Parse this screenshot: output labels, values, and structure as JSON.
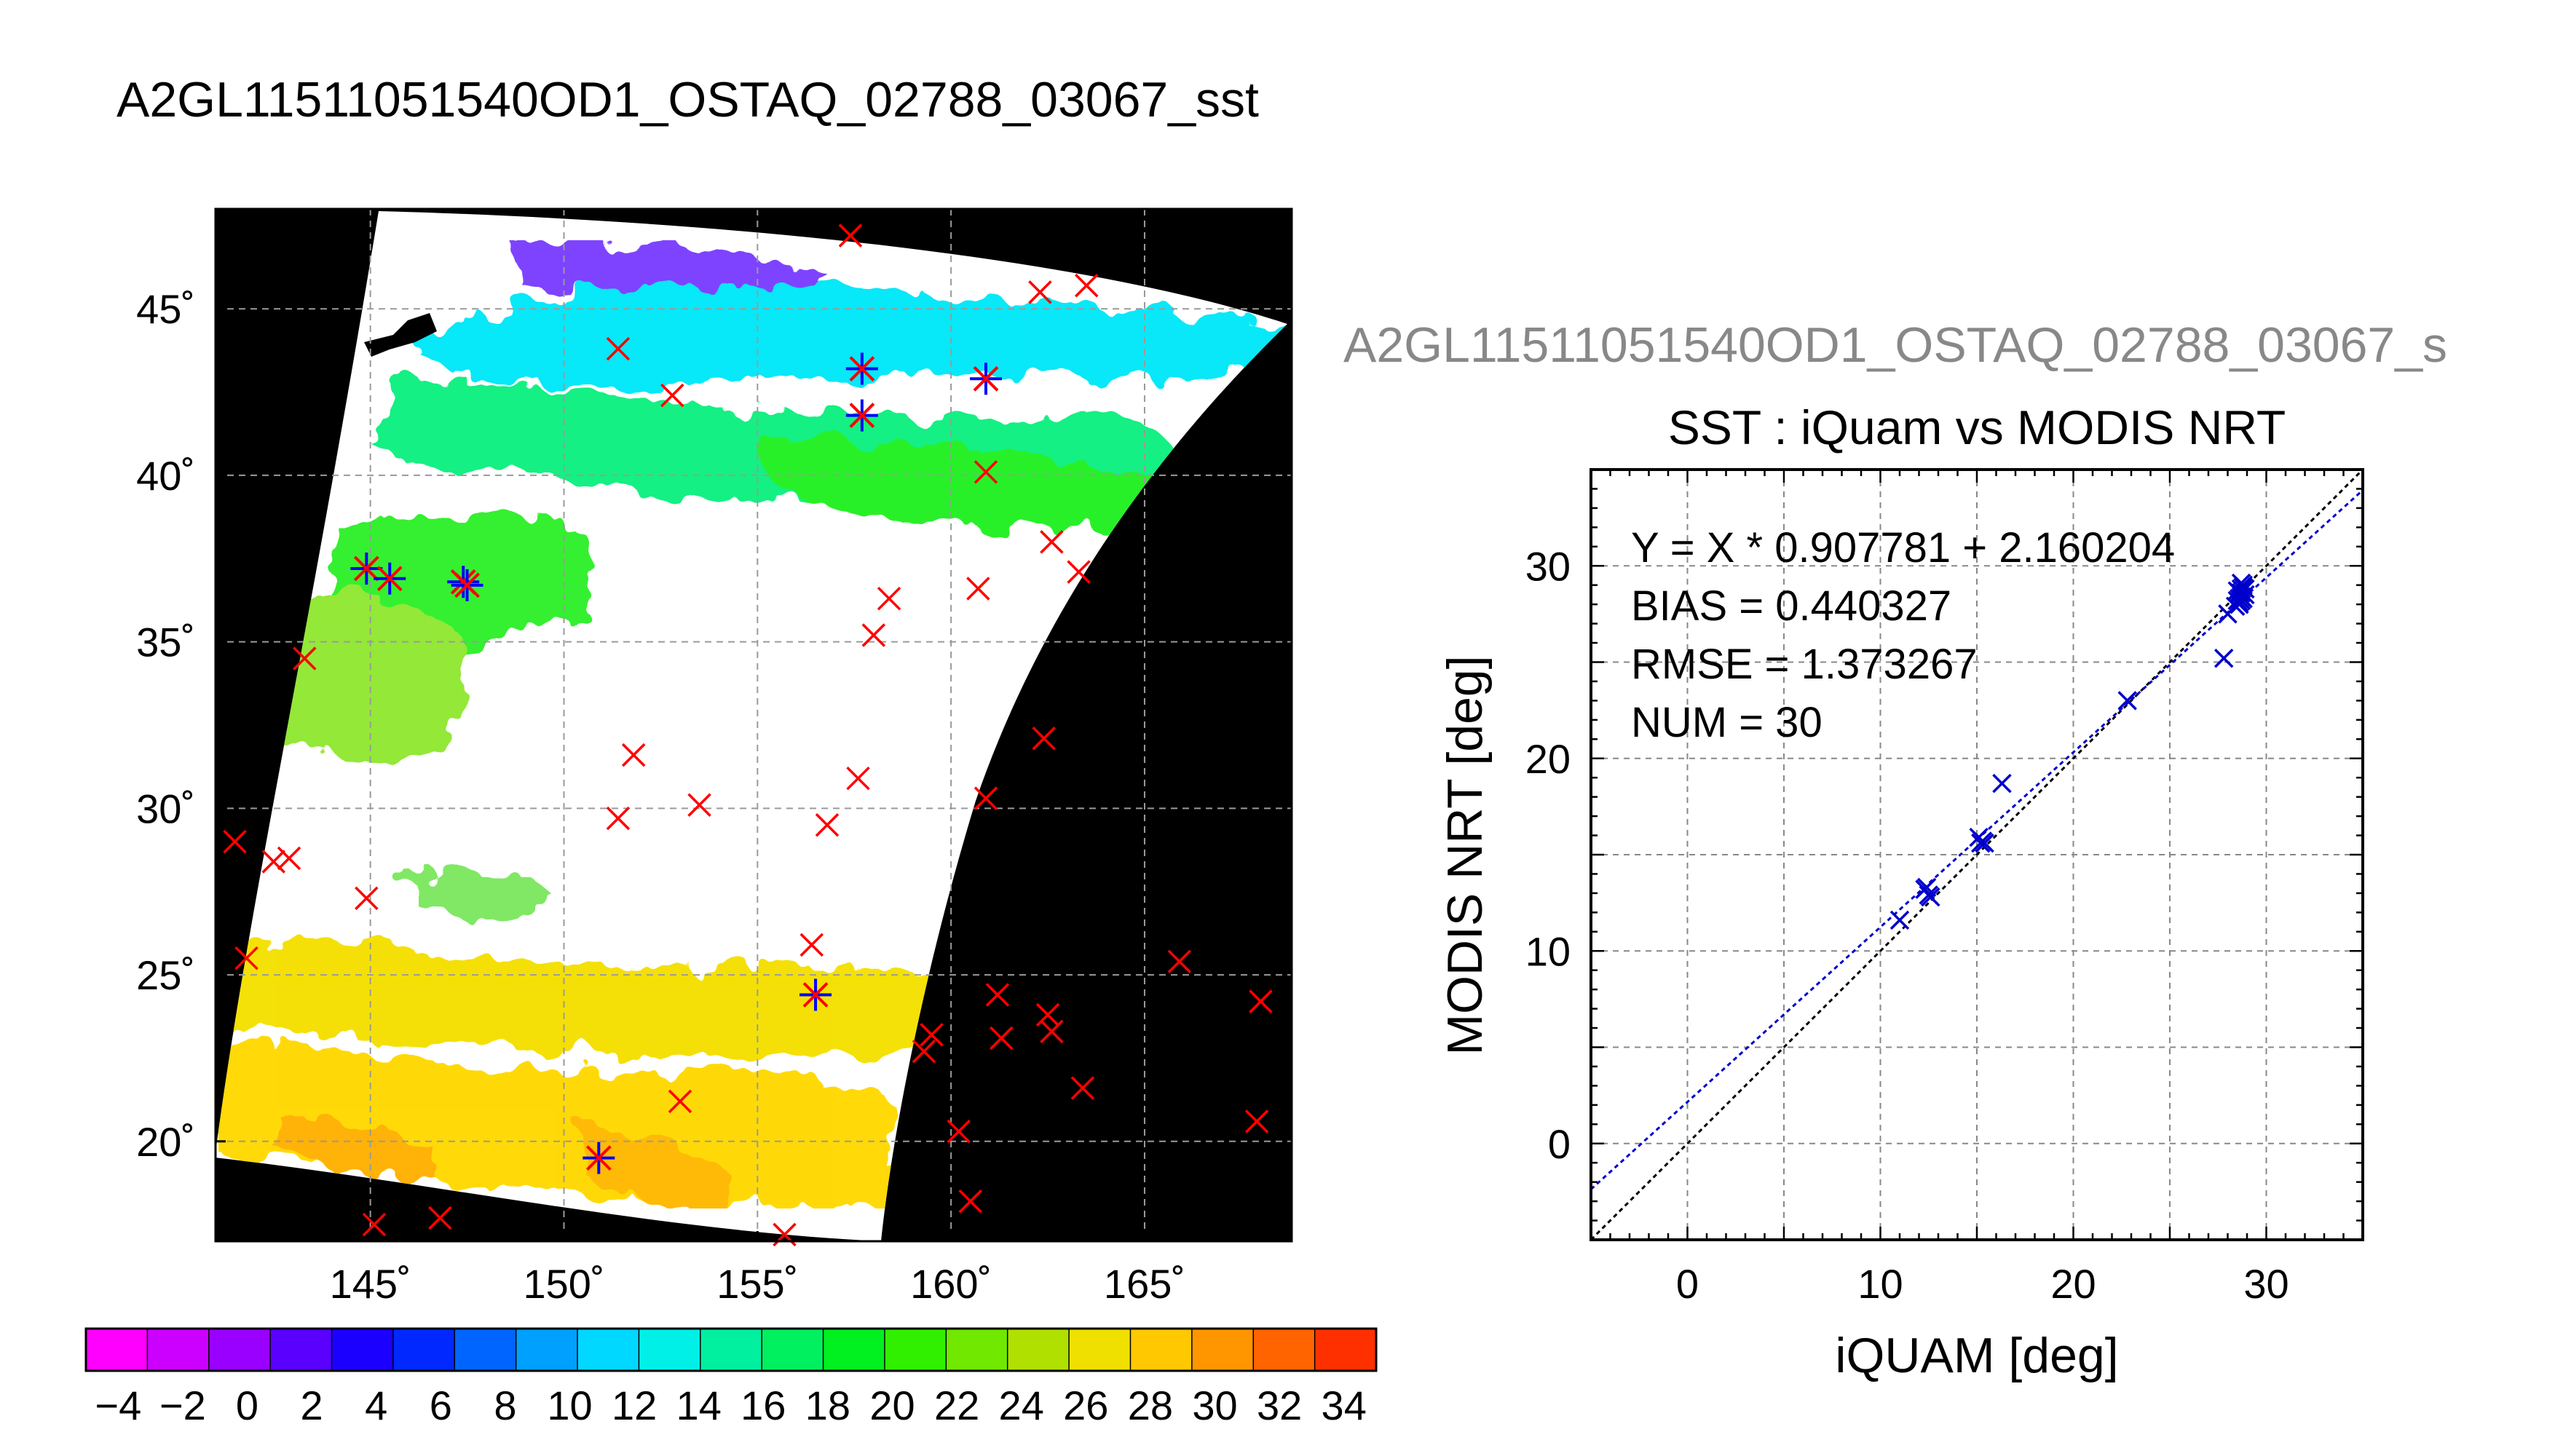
{
  "page": {
    "main_title": "A2GL11511051540OD1_OSTAQ_02788_03067_sst",
    "scatter_file_title": "A2GL11511051540OD1_OSTAQ_02788_03067_s"
  },
  "map": {
    "lon_ticks": [
      "145˚",
      "150˚",
      "155˚",
      "160˚",
      "165˚"
    ],
    "lat_ticks": [
      "45˚",
      "40˚",
      "35˚",
      "30˚",
      "25˚",
      "20˚"
    ],
    "lon_tick_values": [
      145,
      150,
      155,
      160,
      165
    ],
    "lat_tick_values": [
      45,
      40,
      35,
      30,
      25,
      20
    ],
    "lon_range": [
      141,
      168.8
    ],
    "lat_range": [
      17,
      48
    ],
    "match_points_outside": [
      [
        157.4,
        47.2
      ],
      [
        162.3,
        45.5
      ],
      [
        163.5,
        45.7
      ],
      [
        151.4,
        43.8
      ],
      [
        152.8,
        42.4
      ],
      [
        160.9,
        40.1
      ],
      [
        162.6,
        38.0
      ],
      [
        163.3,
        37.1
      ],
      [
        160.7,
        36.6
      ],
      [
        158.4,
        36.3
      ],
      [
        158.0,
        35.2
      ],
      [
        143.3,
        34.5
      ],
      [
        162.4,
        32.1
      ],
      [
        151.8,
        31.6
      ],
      [
        157.6,
        30.9
      ],
      [
        153.5,
        30.1
      ],
      [
        151.4,
        29.7
      ],
      [
        156.8,
        29.5
      ],
      [
        160.9,
        30.3
      ],
      [
        141.5,
        29.0
      ],
      [
        142.5,
        28.4
      ],
      [
        142.9,
        28.5
      ],
      [
        144.9,
        27.3
      ],
      [
        141.8,
        25.5
      ],
      [
        156.4,
        25.9
      ],
      [
        165.9,
        25.4
      ],
      [
        161.2,
        24.4
      ],
      [
        168.0,
        24.2
      ],
      [
        162.5,
        23.8
      ],
      [
        161.3,
        23.1
      ],
      [
        162.6,
        23.3
      ],
      [
        159.5,
        23.2
      ],
      [
        159.3,
        22.7
      ],
      [
        163.4,
        21.6
      ],
      [
        153.0,
        21.2
      ],
      [
        160.2,
        20.3
      ],
      [
        167.9,
        20.6
      ],
      [
        160.5,
        18.2
      ],
      [
        145.1,
        17.5
      ],
      [
        146.8,
        17.7
      ],
      [
        155.7,
        17.2
      ]
    ],
    "match_points_valid": [
      [
        157.7,
        43.2
      ],
      [
        160.9,
        42.9
      ],
      [
        157.7,
        41.8
      ],
      [
        144.9,
        37.2
      ],
      [
        145.5,
        36.9
      ],
      [
        147.4,
        36.8
      ],
      [
        147.5,
        36.7
      ],
      [
        156.5,
        24.4
      ],
      [
        150.9,
        19.5
      ]
    ],
    "colors": {
      "point_outside": "#ff0000",
      "point_valid_star": "#0000ff",
      "background": "#000000",
      "cloud": "#ffffff"
    }
  },
  "colorbar": {
    "labels": [
      "−4",
      "−2",
      "0",
      "2",
      "4",
      "6",
      "8",
      "10",
      "12",
      "14",
      "16",
      "18",
      "20",
      "22",
      "24",
      "26",
      "28",
      "30",
      "32",
      "34"
    ],
    "min": -5,
    "max": 35,
    "colors": [
      "#ff00ff",
      "#cc00ff",
      "#9900ff",
      "#5a00ff",
      "#1c00ff",
      "#0028ff",
      "#0064ff",
      "#00a0ff",
      "#00d8ff",
      "#00f0e8",
      "#00f0a0",
      "#00f060",
      "#00f020",
      "#30f000",
      "#70e800",
      "#b0e000",
      "#f0e000",
      "#ffc800",
      "#ff9600",
      "#ff6400",
      "#ff3000"
    ]
  },
  "chart_data": {
    "type": "scatter",
    "title": "SST : iQuam vs MODIS NRT",
    "xlabel": "iQUAM [deg]",
    "ylabel": "MODIS NRT [deg]",
    "xlim": [
      -5,
      35
    ],
    "ylim": [
      -5,
      35
    ],
    "x_ticks": [
      0,
      10,
      20,
      30
    ],
    "y_ticks": [
      0,
      10,
      20,
      30
    ],
    "grid": true,
    "annotations": [
      "Y = X * 0.907781 + 2.160204",
      "BIAS = 0.440327",
      "RMSE = 1.373267",
      "NUM = 30"
    ],
    "regression": {
      "slope": 0.907781,
      "intercept": 2.160204
    },
    "identity_line": true,
    "points": [
      [
        11.0,
        11.6
      ],
      [
        12.3,
        13.2
      ],
      [
        12.5,
        12.9
      ],
      [
        12.4,
        13.3
      ],
      [
        12.6,
        12.8
      ],
      [
        15.1,
        15.9
      ],
      [
        15.2,
        15.6
      ],
      [
        15.3,
        15.7
      ],
      [
        15.4,
        15.6
      ],
      [
        16.3,
        18.7
      ],
      [
        22.8,
        23.0
      ],
      [
        27.8,
        25.2
      ],
      [
        28.0,
        27.5
      ],
      [
        28.4,
        27.9
      ],
      [
        28.5,
        28.2
      ],
      [
        28.6,
        28.0
      ],
      [
        28.7,
        28.6
      ],
      [
        28.8,
        28.9
      ],
      [
        28.7,
        28.4
      ],
      [
        28.6,
        28.3
      ],
      [
        28.8,
        29.0
      ],
      [
        28.9,
        28.5
      ],
      [
        28.5,
        28.7
      ],
      [
        28.7,
        28.8
      ],
      [
        28.6,
        28.1
      ],
      [
        28.8,
        28.3
      ],
      [
        28.7,
        29.1
      ],
      [
        28.6,
        28.6
      ],
      [
        28.9,
        28.8
      ],
      [
        28.7,
        28.2
      ]
    ],
    "colors": {
      "points": "#0000cc",
      "regression": "#0000cc",
      "identity": "#000000"
    }
  }
}
